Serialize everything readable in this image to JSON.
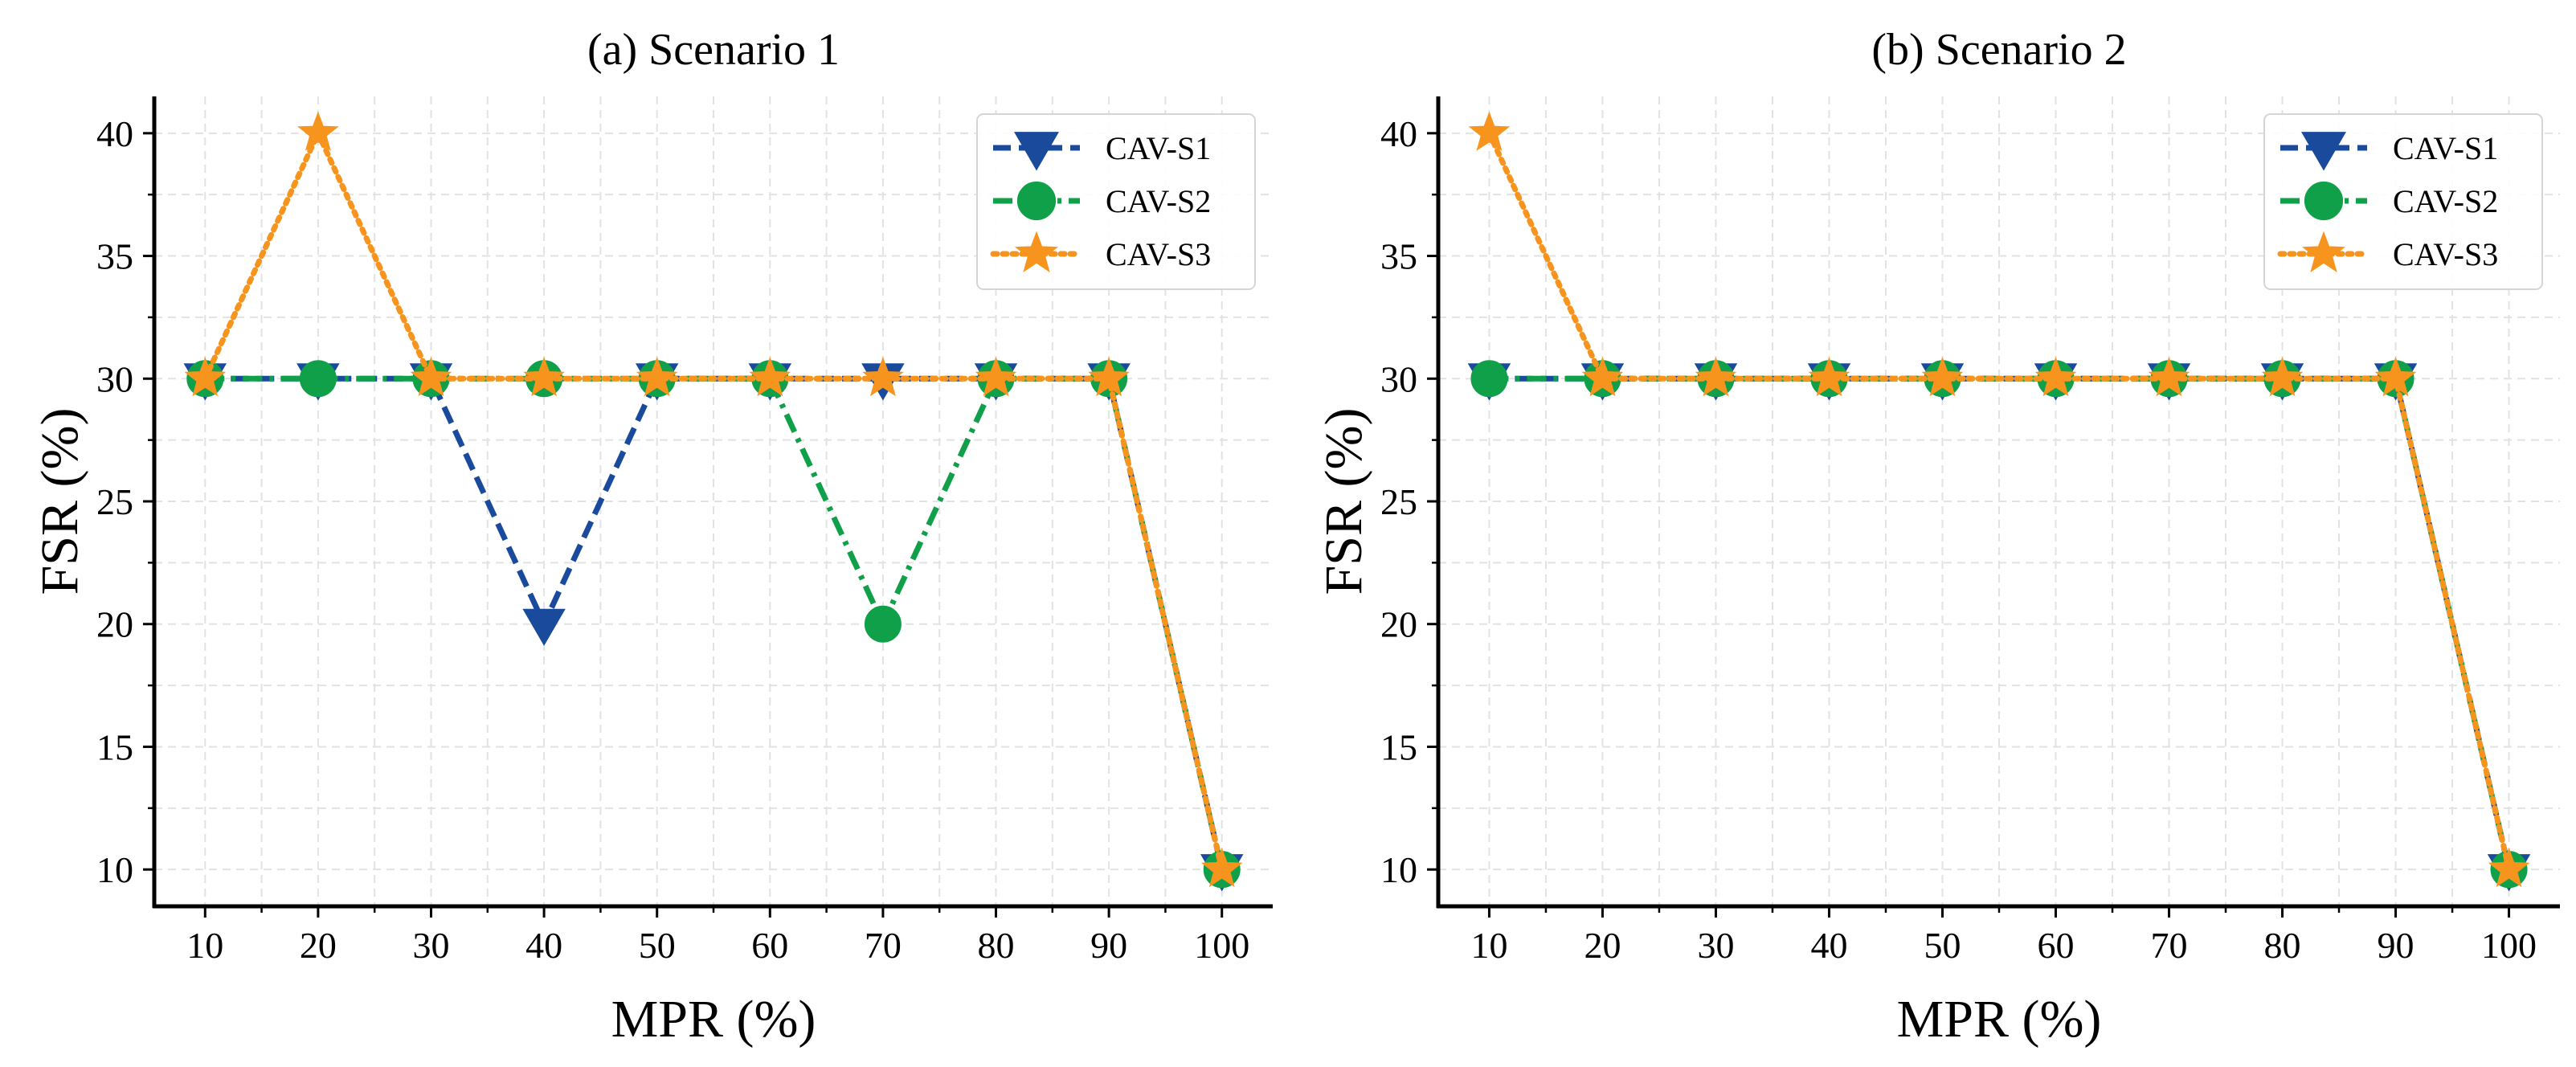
{
  "chart_data": [
    {
      "type": "line",
      "title": "(a) Scenario 1",
      "xlabel": "MPR (%)",
      "ylabel": "FSR (%)",
      "x": [
        10,
        20,
        30,
        40,
        50,
        60,
        70,
        80,
        90,
        100
      ],
      "xticks": [
        "10",
        "20",
        "30",
        "40",
        "50",
        "60",
        "70",
        "80",
        "90",
        "100"
      ],
      "yticks": [
        "10",
        "15",
        "20",
        "25",
        "30",
        "35",
        "40"
      ],
      "xlim": [
        5.5,
        104.5
      ],
      "ylim": [
        8.5,
        41.5
      ],
      "grid": true,
      "legend": "top-right",
      "series": [
        {
          "name": "CAV-S1",
          "color": "#1a4a9c",
          "marker": "triangle-down",
          "dash": "dashed",
          "values": [
            30,
            30,
            30,
            20,
            30,
            30,
            30,
            30,
            30,
            10
          ]
        },
        {
          "name": "CAV-S2",
          "color": "#11a04a",
          "marker": "circle",
          "dash": "dash-dot",
          "values": [
            30,
            30,
            30,
            30,
            30,
            30,
            20,
            30,
            30,
            10
          ]
        },
        {
          "name": "CAV-S3",
          "color": "#f7941d",
          "marker": "star",
          "dash": "dotted",
          "values": [
            30,
            40,
            30,
            30,
            30,
            30,
            30,
            30,
            30,
            10
          ]
        }
      ]
    },
    {
      "type": "line",
      "title": "(b) Scenario 2",
      "xlabel": "MPR (%)",
      "ylabel": "FSR (%)",
      "x": [
        10,
        20,
        30,
        40,
        50,
        60,
        70,
        80,
        90,
        100
      ],
      "xticks": [
        "10",
        "20",
        "30",
        "40",
        "50",
        "60",
        "70",
        "80",
        "90",
        "100"
      ],
      "yticks": [
        "10",
        "15",
        "20",
        "25",
        "30",
        "35",
        "40"
      ],
      "xlim": [
        5.5,
        104.5
      ],
      "ylim": [
        8.5,
        41.5
      ],
      "grid": true,
      "legend": "top-right",
      "series": [
        {
          "name": "CAV-S1",
          "color": "#1a4a9c",
          "marker": "triangle-down",
          "dash": "dashed",
          "values": [
            30,
            30,
            30,
            30,
            30,
            30,
            30,
            30,
            30,
            10
          ]
        },
        {
          "name": "CAV-S2",
          "color": "#11a04a",
          "marker": "circle",
          "dash": "dash-dot",
          "values": [
            30,
            30,
            30,
            30,
            30,
            30,
            30,
            30,
            30,
            10
          ]
        },
        {
          "name": "CAV-S3",
          "color": "#f7941d",
          "marker": "star",
          "dash": "dotted",
          "values": [
            40,
            30,
            30,
            30,
            30,
            30,
            30,
            30,
            30,
            10
          ]
        }
      ]
    }
  ]
}
